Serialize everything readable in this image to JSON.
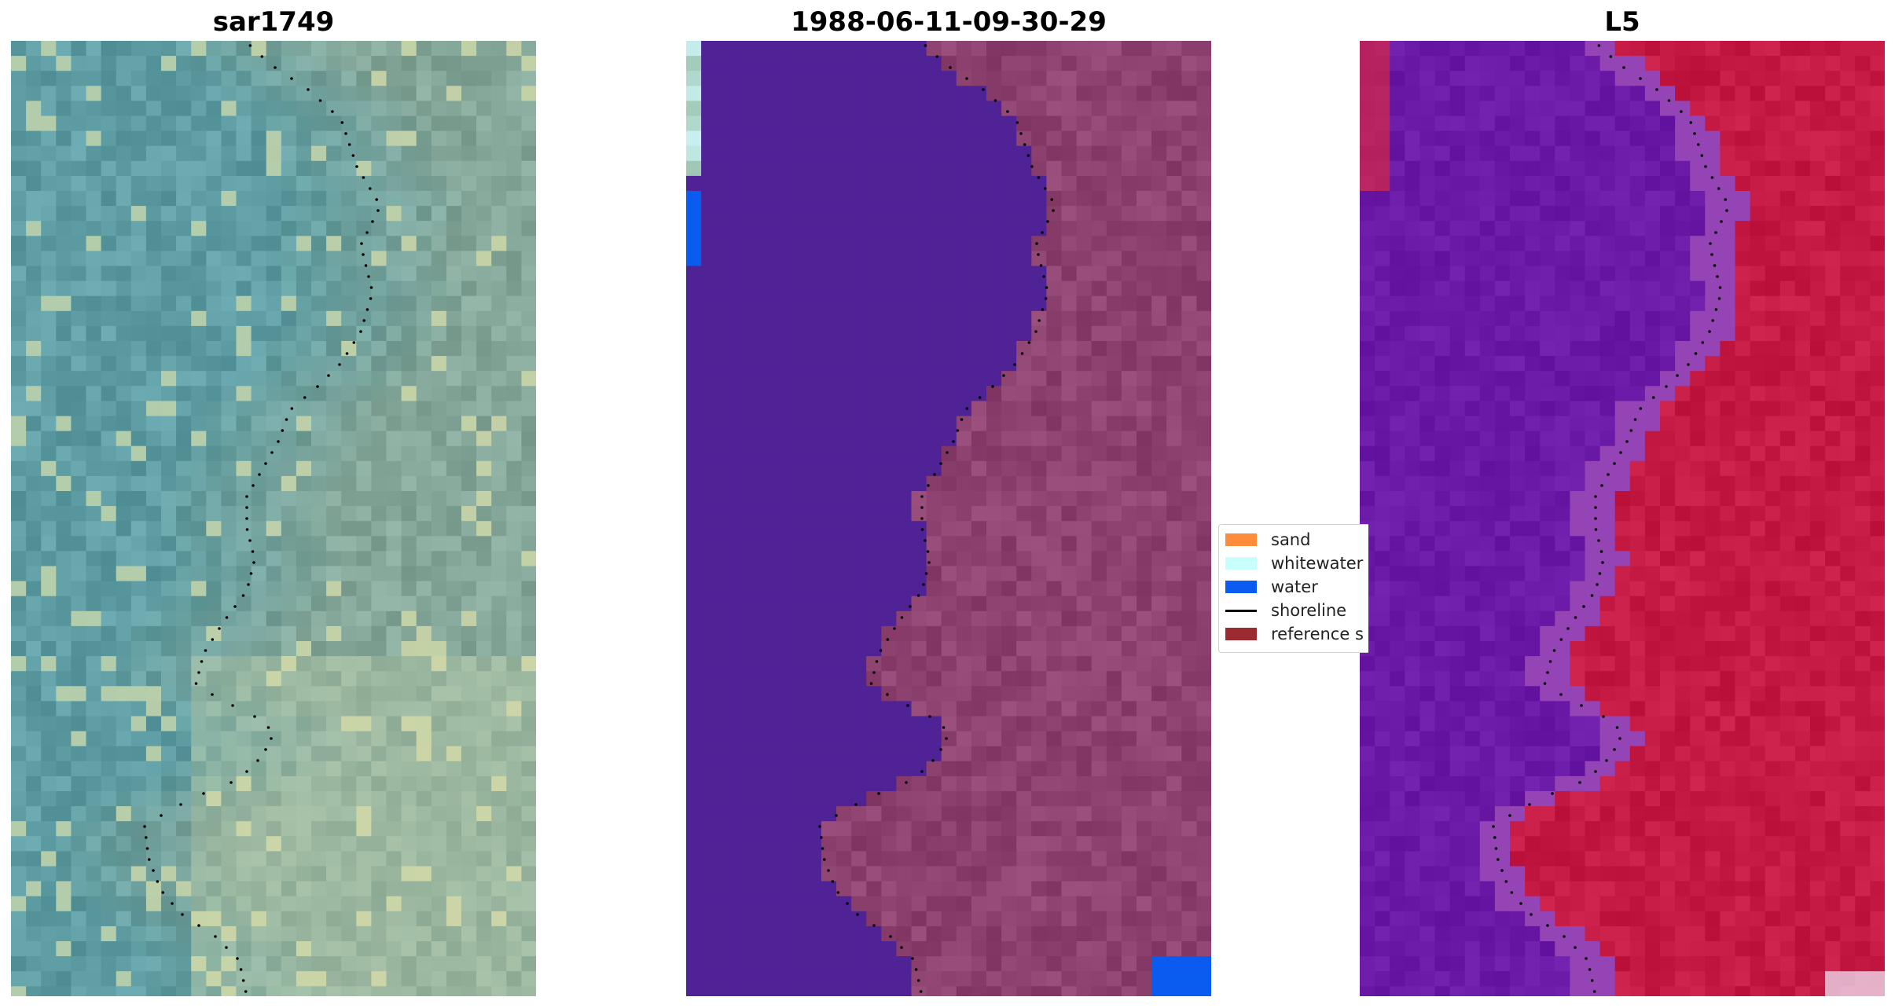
{
  "panels": [
    {
      "title": "sar1749",
      "kind": "rgb"
    },
    {
      "title": "1988-06-11-09-30-29",
      "kind": "classified"
    },
    {
      "title": "L5",
      "kind": "index"
    }
  ],
  "legend": {
    "items": [
      {
        "label": "sand",
        "color": "#ff8c3a",
        "type": "patch"
      },
      {
        "label": "whitewater",
        "color": "#c8fffb",
        "type": "patch"
      },
      {
        "label": "water",
        "color": "#0a5cf0",
        "type": "patch"
      },
      {
        "label": "shoreline",
        "color": "#000000",
        "type": "line"
      },
      {
        "label": "reference s",
        "color": "#9b2b30",
        "type": "patch"
      }
    ]
  },
  "colors": {
    "water_class": "#4f2296",
    "land_class": "#8e4270",
    "index_water": "#6a1aa6",
    "index_land": "#c51a44",
    "rgb_water": "#5f9ea4",
    "rgb_land": "#86a89a",
    "shoreline": "#000000"
  }
}
